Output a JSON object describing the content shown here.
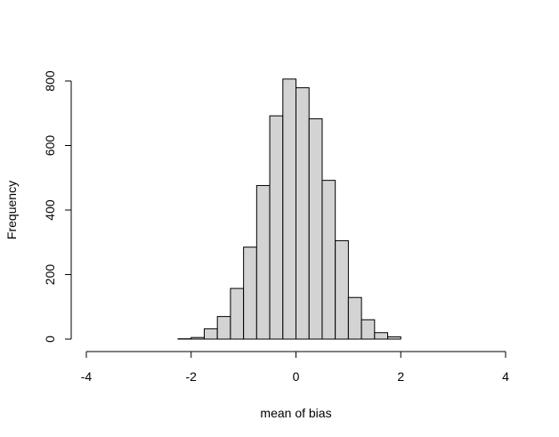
{
  "chart_data": {
    "type": "histogram",
    "title": "",
    "xlabel": "mean of bias",
    "ylabel": "Frequency",
    "xlim": [
      -4,
      4
    ],
    "ylim": [
      0,
      800
    ],
    "x_ticks": [
      "-4",
      "-2",
      "0",
      "2",
      "4"
    ],
    "y_ticks": [
      "0",
      "200",
      "400",
      "600",
      "800"
    ],
    "grid": false,
    "bin_width": 0.25,
    "bins": [
      {
        "x0": -4.0,
        "x1": -3.75,
        "count": 0
      },
      {
        "x0": -3.75,
        "x1": -3.5,
        "count": 0
      },
      {
        "x0": -3.5,
        "x1": -3.25,
        "count": 0
      },
      {
        "x0": -3.25,
        "x1": -3.0,
        "count": 0
      },
      {
        "x0": -3.0,
        "x1": -2.75,
        "count": 0
      },
      {
        "x0": -2.75,
        "x1": -2.5,
        "count": 0
      },
      {
        "x0": -2.5,
        "x1": -2.25,
        "count": 0
      },
      {
        "x0": -2.25,
        "x1": -2.0,
        "count": 1
      },
      {
        "x0": -2.0,
        "x1": -1.75,
        "count": 5
      },
      {
        "x0": -1.75,
        "x1": -1.5,
        "count": 32
      },
      {
        "x0": -1.5,
        "x1": -1.25,
        "count": 70
      },
      {
        "x0": -1.25,
        "x1": -1.0,
        "count": 157
      },
      {
        "x0": -1.0,
        "x1": -0.75,
        "count": 285
      },
      {
        "x0": -0.75,
        "x1": -0.5,
        "count": 476
      },
      {
        "x0": -0.5,
        "x1": -0.25,
        "count": 692
      },
      {
        "x0": -0.25,
        "x1": 0.0,
        "count": 806
      },
      {
        "x0": 0.0,
        "x1": 0.25,
        "count": 779
      },
      {
        "x0": 0.25,
        "x1": 0.5,
        "count": 683
      },
      {
        "x0": 0.5,
        "x1": 0.75,
        "count": 492
      },
      {
        "x0": 0.75,
        "x1": 1.0,
        "count": 305
      },
      {
        "x0": 1.0,
        "x1": 1.25,
        "count": 129
      },
      {
        "x0": 1.25,
        "x1": 1.5,
        "count": 60
      },
      {
        "x0": 1.5,
        "x1": 1.75,
        "count": 20
      },
      {
        "x0": 1.75,
        "x1": 2.0,
        "count": 7
      },
      {
        "x0": 2.0,
        "x1": 2.25,
        "count": 0
      },
      {
        "x0": 2.25,
        "x1": 2.5,
        "count": 0
      },
      {
        "x0": 2.5,
        "x1": 2.75,
        "count": 0
      },
      {
        "x0": 2.75,
        "x1": 3.0,
        "count": 0
      },
      {
        "x0": 3.0,
        "x1": 3.25,
        "count": 0
      },
      {
        "x0": 3.25,
        "x1": 3.5,
        "count": 0
      },
      {
        "x0": 3.5,
        "x1": 3.75,
        "count": 0
      },
      {
        "x0": 3.75,
        "x1": 4.0,
        "count": 0
      }
    ],
    "colors": {
      "bar_fill": "#d3d3d3",
      "bar_stroke": "#000000",
      "axis": "#000000"
    }
  }
}
